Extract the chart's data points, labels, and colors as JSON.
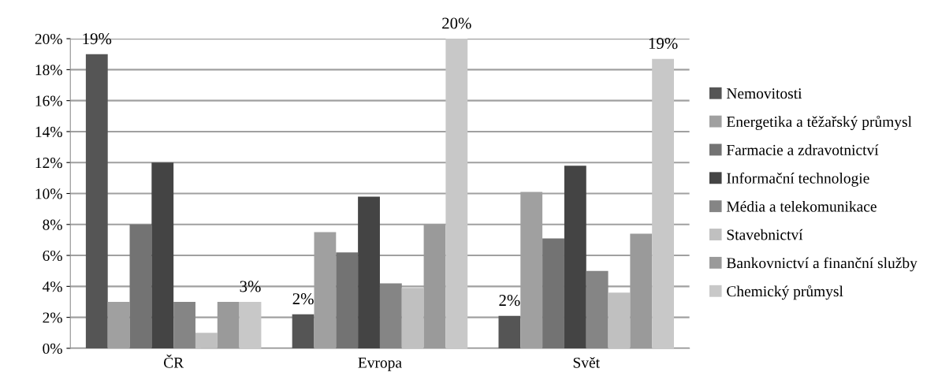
{
  "chart_data": {
    "type": "bar",
    "categories": [
      "ČR",
      "Evropa",
      "Svět"
    ],
    "series": [
      {
        "name": "Nemovitosti",
        "color": "#555555",
        "values": [
          19,
          2.2,
          2.1
        ],
        "value_labels": [
          "19%",
          "2%",
          "2%"
        ]
      },
      {
        "name": "Energetika a těžařský průmysl",
        "color": "#a0a0a0",
        "values": [
          3,
          7.5,
          10.1
        ]
      },
      {
        "name": "Farmacie a zdravotnictví",
        "color": "#737373",
        "values": [
          8,
          6.2,
          7.1
        ]
      },
      {
        "name": "Informační technologie",
        "color": "#444444",
        "values": [
          12,
          9.8,
          11.8
        ]
      },
      {
        "name": "Média a telekomunikace",
        "color": "#858585",
        "values": [
          3,
          4.2,
          5.0
        ]
      },
      {
        "name": "Stavebnictví",
        "color": "#c0c0c0",
        "values": [
          1,
          3.9,
          3.6
        ]
      },
      {
        "name": "Bankovnictví a finanční služby",
        "color": "#9a9a9a",
        "values": [
          3,
          8.0,
          7.4
        ]
      },
      {
        "name": "Chemický průmysl",
        "color": "#c8c8c8",
        "values": [
          3,
          20,
          18.7
        ],
        "value_labels": [
          "3%",
          "20%",
          "19%"
        ]
      }
    ],
    "ylim": [
      0,
      20
    ],
    "yticks": [
      {
        "value": 0,
        "label": "0%"
      },
      {
        "value": 2,
        "label": "2%"
      },
      {
        "value": 4,
        "label": "4%"
      },
      {
        "value": 6,
        "label": "6%"
      },
      {
        "value": 8,
        "label": "8%"
      },
      {
        "value": 10,
        "label": "10%"
      },
      {
        "value": 12,
        "label": "12%"
      },
      {
        "value": 14,
        "label": "14%"
      },
      {
        "value": 16,
        "label": "16%"
      },
      {
        "value": 18,
        "label": "18%"
      },
      {
        "value": 20,
        "label": "20%"
      }
    ],
    "grid": "y",
    "legend": "right"
  }
}
